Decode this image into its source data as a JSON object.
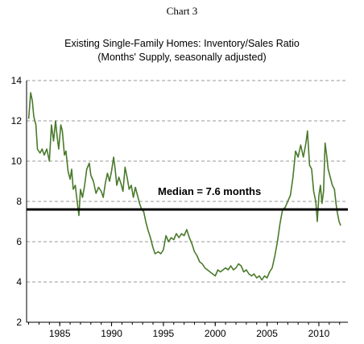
{
  "chart_label": "Chart 3",
  "title_line1": "Existing Single-Family Homes:  Inventory/Sales Ratio",
  "title_line2": "(Months' Supply, seasonally adjusted)",
  "chart_data": {
    "type": "line",
    "title": "Existing Single-Family Homes:  Inventory/Sales Ratio",
    "subtitle": "(Months' Supply, seasonally adjusted)",
    "xlabel": "",
    "ylabel": "",
    "xlim": [
      1981.8,
      2012.8
    ],
    "ylim": [
      2,
      14
    ],
    "yticks": [
      2,
      4,
      6,
      8,
      10,
      12,
      14
    ],
    "xticks": [
      1985,
      1990,
      1995,
      2000,
      2005,
      2010
    ],
    "grid": "horizontal dashed",
    "median": {
      "value": 7.6,
      "label": "Median = 7.6 months"
    },
    "colors": {
      "series": "#4a7a2c",
      "median": "#000000",
      "grid": "#9a9a9a"
    },
    "series": [
      {
        "points": [
          [
            1982.0,
            12.1
          ],
          [
            1982.2,
            13.4
          ],
          [
            1982.35,
            13.0
          ],
          [
            1982.5,
            12.2
          ],
          [
            1982.7,
            11.8
          ],
          [
            1982.85,
            10.6
          ],
          [
            1983.1,
            10.4
          ],
          [
            1983.3,
            10.6
          ],
          [
            1983.5,
            10.3
          ],
          [
            1983.75,
            10.6
          ],
          [
            1984.0,
            10.0
          ],
          [
            1984.2,
            11.8
          ],
          [
            1984.4,
            11.0
          ],
          [
            1984.6,
            12.0
          ],
          [
            1984.75,
            11.2
          ],
          [
            1984.9,
            10.6
          ],
          [
            1985.1,
            11.8
          ],
          [
            1985.25,
            11.5
          ],
          [
            1985.45,
            10.3
          ],
          [
            1985.6,
            10.5
          ],
          [
            1985.8,
            9.5
          ],
          [
            1986.0,
            9.1
          ],
          [
            1986.15,
            9.6
          ],
          [
            1986.3,
            8.6
          ],
          [
            1986.5,
            8.8
          ],
          [
            1986.7,
            7.9
          ],
          [
            1986.85,
            7.3
          ],
          [
            1987.0,
            8.6
          ],
          [
            1987.2,
            8.2
          ],
          [
            1987.4,
            8.8
          ],
          [
            1987.6,
            9.6
          ],
          [
            1987.85,
            9.9
          ],
          [
            1988.0,
            9.3
          ],
          [
            1988.25,
            9.0
          ],
          [
            1988.5,
            8.4
          ],
          [
            1988.75,
            8.7
          ],
          [
            1989.0,
            8.5
          ],
          [
            1989.2,
            8.2
          ],
          [
            1989.4,
            8.9
          ],
          [
            1989.6,
            9.4
          ],
          [
            1989.8,
            9.0
          ],
          [
            1990.0,
            9.5
          ],
          [
            1990.2,
            10.2
          ],
          [
            1990.35,
            9.6
          ],
          [
            1990.5,
            8.8
          ],
          [
            1990.7,
            9.2
          ],
          [
            1990.9,
            8.9
          ],
          [
            1991.1,
            8.5
          ],
          [
            1991.3,
            9.7
          ],
          [
            1991.5,
            9.2
          ],
          [
            1991.7,
            8.6
          ],
          [
            1991.9,
            8.8
          ],
          [
            1992.1,
            8.2
          ],
          [
            1992.3,
            8.7
          ],
          [
            1992.5,
            8.3
          ],
          [
            1992.7,
            7.9
          ],
          [
            1992.9,
            7.6
          ],
          [
            1993.1,
            7.5
          ],
          [
            1993.3,
            7.0
          ],
          [
            1993.5,
            6.6
          ],
          [
            1993.75,
            6.2
          ],
          [
            1994.0,
            5.7
          ],
          [
            1994.2,
            5.4
          ],
          [
            1994.5,
            5.5
          ],
          [
            1994.75,
            5.4
          ],
          [
            1995.0,
            5.6
          ],
          [
            1995.25,
            6.3
          ],
          [
            1995.5,
            6.0
          ],
          [
            1995.75,
            6.2
          ],
          [
            1996.0,
            6.1
          ],
          [
            1996.25,
            6.4
          ],
          [
            1996.5,
            6.2
          ],
          [
            1996.75,
            6.4
          ],
          [
            1997.0,
            6.3
          ],
          [
            1997.25,
            6.6
          ],
          [
            1997.5,
            6.2
          ],
          [
            1997.75,
            5.9
          ],
          [
            1998.0,
            5.5
          ],
          [
            1998.25,
            5.3
          ],
          [
            1998.5,
            5.0
          ],
          [
            1998.75,
            4.9
          ],
          [
            1999.0,
            4.7
          ],
          [
            1999.25,
            4.6
          ],
          [
            1999.5,
            4.5
          ],
          [
            1999.75,
            4.4
          ],
          [
            2000.0,
            4.3
          ],
          [
            2000.25,
            4.6
          ],
          [
            2000.5,
            4.5
          ],
          [
            2000.75,
            4.6
          ],
          [
            2001.0,
            4.7
          ],
          [
            2001.25,
            4.6
          ],
          [
            2001.5,
            4.8
          ],
          [
            2001.75,
            4.6
          ],
          [
            2002.0,
            4.7
          ],
          [
            2002.25,
            4.9
          ],
          [
            2002.5,
            4.8
          ],
          [
            2002.75,
            4.5
          ],
          [
            2003.0,
            4.6
          ],
          [
            2003.25,
            4.4
          ],
          [
            2003.5,
            4.3
          ],
          [
            2003.75,
            4.4
          ],
          [
            2004.0,
            4.2
          ],
          [
            2004.25,
            4.3
          ],
          [
            2004.5,
            4.1
          ],
          [
            2004.75,
            4.3
          ],
          [
            2005.0,
            4.2
          ],
          [
            2005.25,
            4.5
          ],
          [
            2005.5,
            4.7
          ],
          [
            2005.75,
            5.3
          ],
          [
            2006.0,
            6.0
          ],
          [
            2006.25,
            6.9
          ],
          [
            2006.5,
            7.6
          ],
          [
            2006.75,
            7.7
          ],
          [
            2007.0,
            8.0
          ],
          [
            2007.25,
            8.3
          ],
          [
            2007.5,
            9.2
          ],
          [
            2007.75,
            10.5
          ],
          [
            2008.0,
            10.2
          ],
          [
            2008.25,
            10.8
          ],
          [
            2008.5,
            10.2
          ],
          [
            2008.75,
            10.9
          ],
          [
            2008.9,
            11.5
          ],
          [
            2009.1,
            9.8
          ],
          [
            2009.3,
            9.6
          ],
          [
            2009.5,
            8.5
          ],
          [
            2009.7,
            8.0
          ],
          [
            2009.85,
            7.0
          ],
          [
            2010.0,
            8.3
          ],
          [
            2010.15,
            8.8
          ],
          [
            2010.3,
            7.9
          ],
          [
            2010.45,
            8.5
          ],
          [
            2010.6,
            10.9
          ],
          [
            2010.75,
            10.3
          ],
          [
            2010.9,
            9.6
          ],
          [
            2011.1,
            9.2
          ],
          [
            2011.3,
            8.8
          ],
          [
            2011.5,
            8.6
          ],
          [
            2011.65,
            7.9
          ],
          [
            2011.8,
            7.4
          ],
          [
            2011.95,
            7.0
          ],
          [
            2012.1,
            6.8
          ]
        ]
      }
    ]
  }
}
